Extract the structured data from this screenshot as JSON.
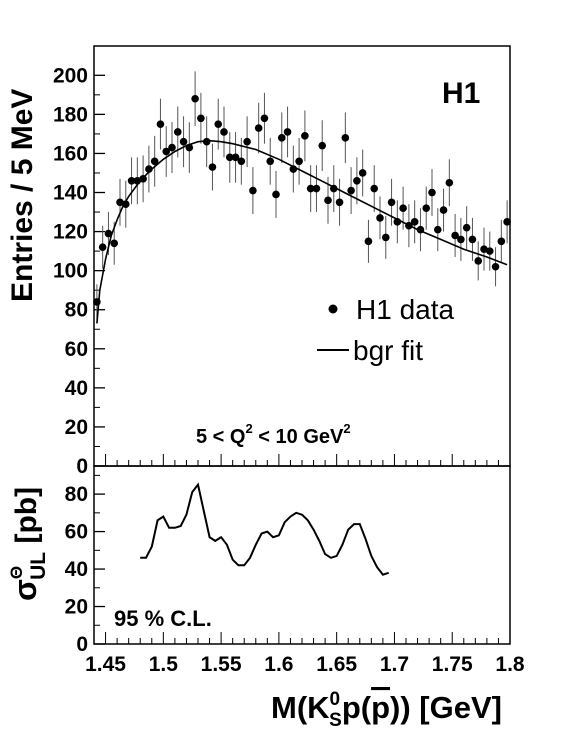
{
  "chart_data": [
    {
      "type": "scatter",
      "panel": "top",
      "label": "H1",
      "annotation": {
        "text": "5 < Q",
        "sup": "2",
        "middle": " <  10 GeV",
        "sup2": "2"
      },
      "ylabel": "Entries / 5 MeV",
      "xlim": [
        1.44,
        1.8
      ],
      "ylim": [
        0,
        215
      ],
      "yticks": [
        0,
        20,
        40,
        60,
        80,
        100,
        120,
        140,
        160,
        180,
        200
      ],
      "legend": {
        "placement": "right",
        "data_label": "H1 data",
        "fit_label": "bgr fit"
      },
      "series": [
        {
          "name": "H1 data",
          "x": [
            1.4425,
            1.4475,
            1.4525,
            1.4575,
            1.4625,
            1.4675,
            1.4725,
            1.4775,
            1.4825,
            1.4875,
            1.4925,
            1.4975,
            1.5025,
            1.5075,
            1.5125,
            1.5175,
            1.5225,
            1.5275,
            1.5325,
            1.5375,
            1.5425,
            1.5475,
            1.5525,
            1.5575,
            1.5625,
            1.5675,
            1.5725,
            1.5775,
            1.5825,
            1.5875,
            1.5925,
            1.5975,
            1.6025,
            1.6075,
            1.6125,
            1.6175,
            1.6225,
            1.6275,
            1.6325,
            1.6375,
            1.6425,
            1.6475,
            1.6525,
            1.6575,
            1.6625,
            1.6675,
            1.6725,
            1.6775,
            1.6825,
            1.6875,
            1.6925,
            1.6975,
            1.7025,
            1.7075,
            1.7125,
            1.7175,
            1.7225,
            1.7275,
            1.7325,
            1.7375,
            1.7425,
            1.7475,
            1.7525,
            1.7575,
            1.7625,
            1.7675,
            1.7725,
            1.7775,
            1.7825,
            1.7875,
            1.7925,
            1.7975
          ],
          "y": [
            84,
            112,
            119,
            114,
            135,
            134,
            146,
            146,
            147,
            152,
            156,
            175,
            161,
            163,
            171,
            166,
            163,
            188,
            178,
            166,
            153,
            175,
            171,
            158,
            158,
            156,
            166,
            141,
            173,
            178,
            156,
            139,
            168,
            171,
            152,
            156,
            169,
            142,
            142,
            164,
            136,
            142,
            135,
            168,
            141,
            146,
            150,
            115,
            142,
            127,
            117,
            135,
            125,
            132,
            123,
            125,
            121,
            132,
            140,
            121,
            131,
            145,
            118,
            116,
            122,
            116,
            105,
            111,
            110,
            102,
            115,
            125
          ],
          "err": [
            9,
            11,
            11,
            11,
            12,
            12,
            12,
            12,
            12,
            12,
            13,
            13,
            13,
            13,
            13,
            13,
            13,
            14,
            13,
            13,
            12,
            13,
            13,
            13,
            13,
            12,
            13,
            12,
            13,
            13,
            12,
            12,
            13,
            13,
            12,
            12,
            13,
            12,
            12,
            13,
            12,
            12,
            12,
            13,
            12,
            12,
            12,
            11,
            12,
            11,
            11,
            12,
            11,
            11,
            11,
            11,
            11,
            11,
            12,
            11,
            11,
            12,
            11,
            11,
            11,
            11,
            10,
            11,
            10,
            10,
            11,
            11
          ]
        },
        {
          "name": "bgr fit",
          "x": [
            1.4425,
            1.445,
            1.45,
            1.455,
            1.46,
            1.465,
            1.47,
            1.48,
            1.49,
            1.5,
            1.51,
            1.52,
            1.53,
            1.54,
            1.55,
            1.56,
            1.58,
            1.6,
            1.62,
            1.64,
            1.66,
            1.68,
            1.7,
            1.72,
            1.74,
            1.76,
            1.78,
            1.7975
          ],
          "y": [
            73,
            90,
            106,
            118,
            126,
            133,
            138,
            146,
            152,
            157,
            161,
            164,
            166,
            166.5,
            166,
            165,
            162,
            157,
            151,
            145,
            139,
            133,
            127,
            121,
            116,
            111,
            107,
            103
          ]
        }
      ]
    },
    {
      "type": "line",
      "panel": "bottom",
      "ylabel": "σ",
      "ylabel_sup": "Θ",
      "ylabel_sub": "UL",
      "ylabel_unit": " [pb]",
      "annotation": "95 % C.L.",
      "xlabel": "M(K",
      "xlabel_sup": "0",
      "xlabel_sub": "S",
      "xlabel_mid": "p(",
      "xlabel_bar": "p",
      "xlabel_end": ")) [GeV]",
      "xlim": [
        1.44,
        1.8
      ],
      "ylim": [
        0,
        95
      ],
      "yticks": [
        0,
        20,
        40,
        60,
        80
      ],
      "xticks": [
        1.45,
        1.5,
        1.55,
        1.6,
        1.65,
        1.7,
        1.75,
        1.8
      ],
      "xticklabels": [
        "1.45",
        "1.5",
        "1.55",
        "1.6",
        "1.65",
        "1.7",
        "1.75",
        "1.8"
      ],
      "series": [
        {
          "name": "",
          "x": [
            1.48,
            1.485,
            1.49,
            1.495,
            1.5,
            1.505,
            1.51,
            1.515,
            1.52,
            1.525,
            1.53,
            1.535,
            1.54,
            1.545,
            1.55,
            1.555,
            1.56,
            1.565,
            1.57,
            1.575,
            1.58,
            1.585,
            1.59,
            1.595,
            1.6,
            1.605,
            1.61,
            1.615,
            1.62,
            1.625,
            1.63,
            1.635,
            1.64,
            1.645,
            1.65,
            1.655,
            1.66,
            1.665,
            1.67,
            1.675,
            1.68,
            1.685,
            1.69,
            1.695
          ],
          "y": [
            46,
            46,
            52,
            66,
            68,
            62,
            62,
            63,
            69,
            81,
            85,
            71,
            57,
            55,
            57,
            53,
            45,
            42,
            42,
            46,
            53,
            59,
            60,
            57,
            58,
            65,
            68,
            70,
            69,
            66,
            61,
            55,
            48,
            46,
            47,
            53,
            61,
            64,
            64,
            56,
            47,
            41,
            37,
            38
          ]
        }
      ]
    }
  ]
}
